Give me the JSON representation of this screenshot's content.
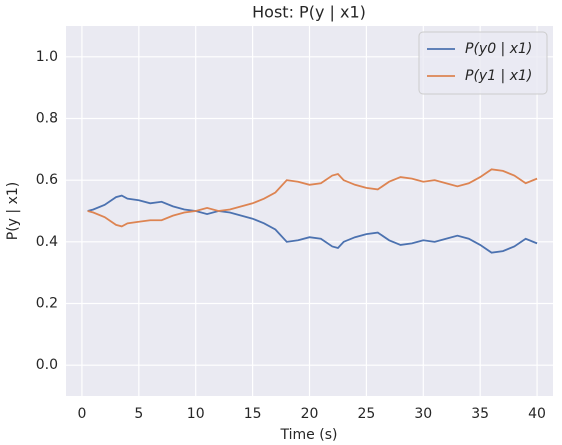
{
  "chart_data": {
    "type": "line",
    "title": "Host: P(y | x1)",
    "xlabel": "Time (s)",
    "ylabel": "P(y | x1)",
    "x": [
      0.5,
      1,
      2,
      3,
      3.5,
      4,
      5,
      6,
      7,
      8,
      9,
      10,
      11,
      12,
      13,
      14,
      15,
      16,
      17,
      18,
      19,
      20,
      21,
      22,
      22.5,
      23,
      24,
      25,
      26,
      27,
      28,
      29,
      30,
      31,
      32,
      33,
      34,
      35,
      36,
      37,
      38,
      39,
      40
    ],
    "series": [
      {
        "name": "P(y0 | x1)",
        "color": "#4c72b0",
        "values": [
          0.5,
          0.505,
          0.52,
          0.545,
          0.55,
          0.54,
          0.535,
          0.525,
          0.53,
          0.515,
          0.505,
          0.5,
          0.49,
          0.5,
          0.495,
          0.485,
          0.475,
          0.46,
          0.44,
          0.4,
          0.405,
          0.415,
          0.41,
          0.385,
          0.38,
          0.4,
          0.415,
          0.425,
          0.43,
          0.405,
          0.39,
          0.395,
          0.405,
          0.4,
          0.41,
          0.42,
          0.41,
          0.39,
          0.365,
          0.37,
          0.385,
          0.41,
          0.395
        ]
      },
      {
        "name": "P(y1 | x1)",
        "color": "#dd8452",
        "values": [
          0.5,
          0.495,
          0.48,
          0.455,
          0.45,
          0.46,
          0.465,
          0.47,
          0.47,
          0.485,
          0.495,
          0.5,
          0.51,
          0.5,
          0.505,
          0.515,
          0.525,
          0.54,
          0.56,
          0.6,
          0.595,
          0.585,
          0.59,
          0.615,
          0.62,
          0.6,
          0.585,
          0.575,
          0.57,
          0.595,
          0.61,
          0.605,
          0.595,
          0.6,
          0.59,
          0.58,
          0.59,
          0.61,
          0.635,
          0.63,
          0.615,
          0.59,
          0.605
        ]
      }
    ],
    "xlim": [
      -1.4,
      41.4
    ],
    "ylim": [
      -0.1,
      1.1
    ],
    "xticks": [
      0,
      5,
      10,
      15,
      20,
      25,
      30,
      35,
      40
    ],
    "yticks": [
      {
        "value": 0,
        "label": "0.0"
      },
      {
        "value": 0.2,
        "label": "0.2"
      },
      {
        "value": 0.4,
        "label": "0.4"
      },
      {
        "value": 0.6,
        "label": "0.6"
      },
      {
        "value": 0.8,
        "label": "0.8"
      },
      {
        "value": 1,
        "label": "1.0"
      }
    ],
    "grid": true,
    "legend": "upper right"
  }
}
